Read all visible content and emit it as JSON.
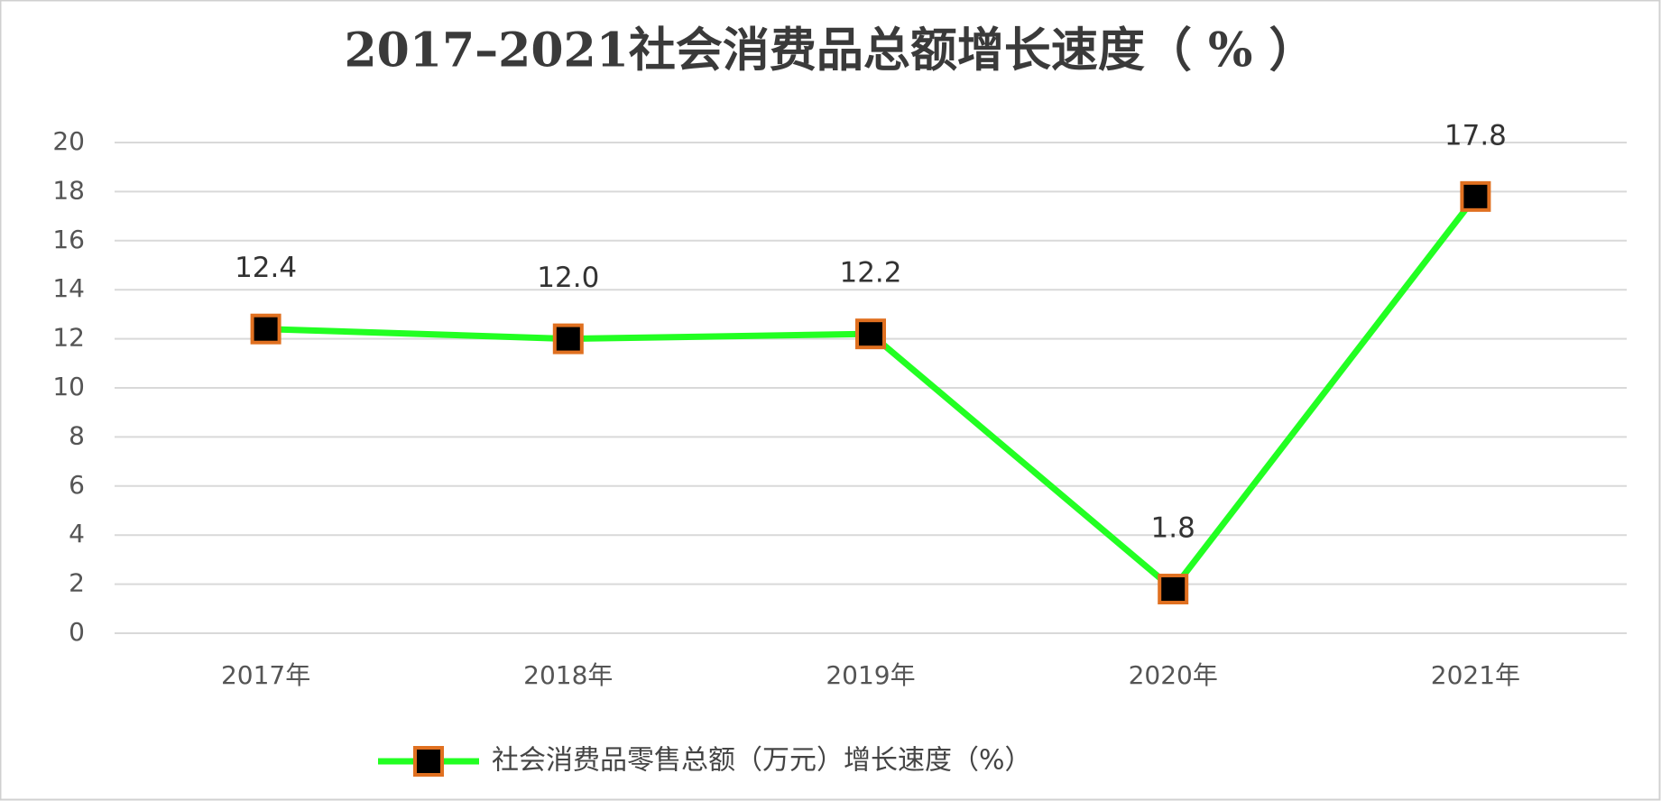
{
  "chart_data": {
    "type": "line",
    "title": "2017–2021社会消费品总额增长速度（ % ）",
    "categories": [
      "2017年",
      "2018年",
      "2019年",
      "2020年",
      "2021年"
    ],
    "series": [
      {
        "name": "社会消费品零售总额（万元）增长速度（%）",
        "color": "#22ff22",
        "marker_color": "#000000",
        "marker_edge": "#e07020",
        "values": [
          12.4,
          12.0,
          12.2,
          1.8,
          17.8
        ],
        "value_labels": [
          "12.4",
          "12.0",
          "12.2",
          "1.8",
          "17.8"
        ]
      }
    ],
    "ylim": [
      0,
      20
    ],
    "yticks": [
      0,
      2,
      4,
      6,
      8,
      10,
      12,
      14,
      16,
      18,
      20
    ],
    "grid": true,
    "legend": "bottom"
  }
}
